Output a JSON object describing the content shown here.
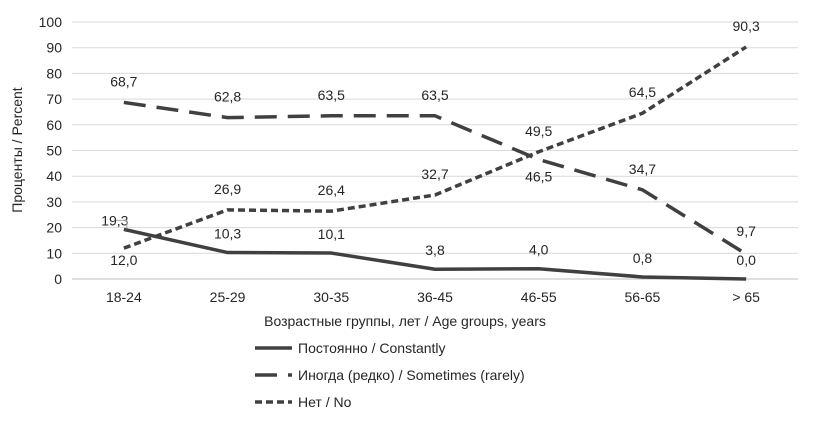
{
  "chart_data": {
    "type": "line",
    "categories": [
      "18-24",
      "25-29",
      "30-35",
      "36-45",
      "46-55",
      "56-65",
      "> 65"
    ],
    "series": [
      {
        "name": "Постоянно / Constantly",
        "values": [
          19.3,
          10.3,
          10.1,
          3.8,
          4.0,
          0.8,
          0.0
        ],
        "labels": [
          "19,3",
          "10,3",
          "10,1",
          "3,8",
          "4,0",
          "0,8",
          "0,0"
        ],
        "dash": "solid"
      },
      {
        "name": "Иногда (редко) /  Sometimes (rarely)",
        "values": [
          68.7,
          62.8,
          63.5,
          63.5,
          46.5,
          34.7,
          9.7
        ],
        "labels": [
          "68,7",
          "62,8",
          "63,5",
          "63,5",
          "46,5",
          "34,7",
          "9,7"
        ],
        "dash": "long-dash"
      },
      {
        "name": "Нет / No",
        "values": [
          12.0,
          26.9,
          26.4,
          32.7,
          49.5,
          64.5,
          90.3
        ],
        "labels": [
          "12,0",
          "26,9",
          "26,4",
          "32,7",
          "49,5",
          "64,5",
          "90,3"
        ],
        "dash": "short-dash"
      }
    ],
    "xlabel": "Возрастные группы, лет / Age groups, years",
    "ylabel": "Проценты / Percent",
    "ylim": [
      0,
      100
    ],
    "yticks": [
      "0",
      "10",
      "20",
      "30",
      "40",
      "50",
      "60",
      "70",
      "80",
      "90",
      "100"
    ],
    "grid": true,
    "legend": "bottom",
    "color": "#404040",
    "grid_color": "#d9d9d9"
  }
}
